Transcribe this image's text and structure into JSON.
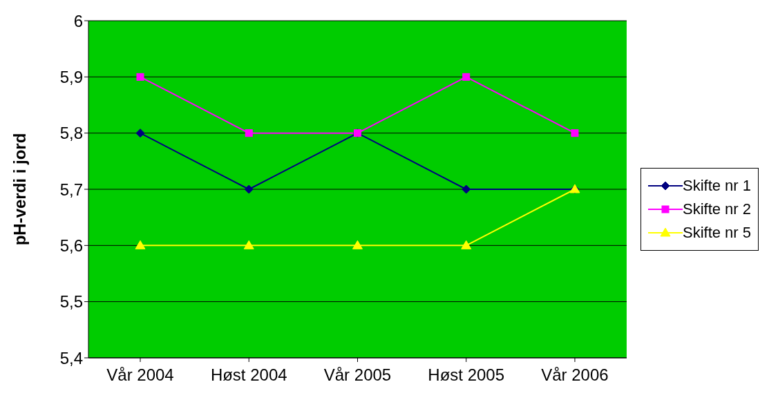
{
  "chart_data": {
    "type": "line",
    "ylabel": "pH-verdi i jord",
    "categories": [
      "Vår 2004",
      "Høst 2004",
      "Vår 2005",
      "Høst 2005",
      "Vår 2006"
    ],
    "series": [
      {
        "name": "Skifte nr 1",
        "color": "#000080",
        "marker": "diamond",
        "values": [
          5.8,
          5.7,
          5.8,
          5.7,
          5.7
        ]
      },
      {
        "name": "Skifte nr 2",
        "color": "#ff00ff",
        "marker": "square",
        "values": [
          5.9,
          5.8,
          5.8,
          5.9,
          5.8
        ]
      },
      {
        "name": "Skifte nr 5",
        "color": "#ffff00",
        "marker": "triangle",
        "values": [
          5.6,
          5.6,
          5.6,
          5.6,
          5.7
        ]
      }
    ],
    "ylim": [
      5.4,
      6
    ],
    "yticks": [
      {
        "value": 5.4,
        "label": "5,4"
      },
      {
        "value": 5.5,
        "label": "5,5"
      },
      {
        "value": 5.6,
        "label": "5,6"
      },
      {
        "value": 5.7,
        "label": "5,7"
      },
      {
        "value": 5.8,
        "label": "5,8"
      },
      {
        "value": 5.9,
        "label": "5,9"
      },
      {
        "value": 6,
        "label": "6"
      }
    ],
    "grid": "y",
    "legend": "right"
  }
}
